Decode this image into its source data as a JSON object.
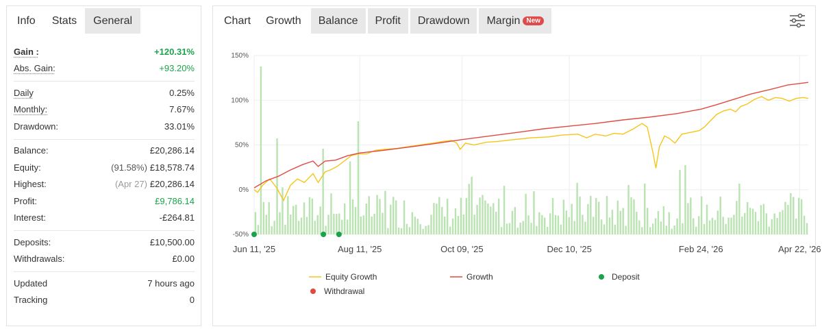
{
  "left_tabs": [
    "Info",
    "Stats",
    "General"
  ],
  "stats": [
    [
      {
        "label": "Gain :",
        "value": "+120.31%",
        "green": true,
        "bold": true,
        "underline": true
      },
      {
        "label": "Abs. Gain:",
        "value": "+93.20%",
        "green": true,
        "underline": true
      }
    ],
    [
      {
        "label": "Daily",
        "value": "0.25%",
        "underline": true
      },
      {
        "label": "Monthly:",
        "value": "7.67%",
        "underline": true
      },
      {
        "label": "Drawdown:",
        "value": "33.01%"
      }
    ],
    [
      {
        "label": "Balance:",
        "value": "£20,286.14"
      },
      {
        "label": "Equity:",
        "prefix": "(91.58%)",
        "prefix_style": "dark",
        "value": "£18,578.74"
      },
      {
        "label": "Highest:",
        "prefix": "(Apr 27)",
        "prefix_style": "muted",
        "value": "£20,286.14"
      },
      {
        "label": "Profit:",
        "value": "£9,786.14",
        "green": true
      },
      {
        "label": "Interest:",
        "value": "-£264.81"
      }
    ],
    [
      {
        "label": "Deposits:",
        "value": "£10,500.00"
      },
      {
        "label": "Withdrawals:",
        "value": "£0.00"
      }
    ],
    [
      {
        "label": "Updated",
        "value": "7 hours ago"
      },
      {
        "label": "Tracking",
        "value": "0"
      }
    ]
  ],
  "chart_tabs": [
    {
      "label": "Chart",
      "style": "plain"
    },
    {
      "label": "Growth",
      "style": "active"
    },
    {
      "label": "Balance"
    },
    {
      "label": "Profit"
    },
    {
      "label": "Drawdown"
    },
    {
      "label": "Margin",
      "badge": "New"
    }
  ],
  "settings_icon": "sliders-icon",
  "colors": {
    "equity": "#f5c518",
    "growth": "#e04a3f",
    "deposit": "#1aa34a",
    "withdrawal": "#e04a3f",
    "bars": "#b9e3b0"
  },
  "chart_data": {
    "type": "line",
    "ylim": [
      -50,
      150
    ],
    "yticks": [
      "150%",
      "100%",
      "50%",
      "0%",
      "-50%"
    ],
    "ytick_values": [
      150,
      100,
      50,
      0,
      -50
    ],
    "x_range": [
      "2025-06-11",
      "2026-04-27"
    ],
    "xticks": [
      {
        "label": "Jun 11, '25",
        "date": "2025-06-11"
      },
      {
        "label": "Aug 11, '25",
        "date": "2025-08-11"
      },
      {
        "label": "Oct 09, '25",
        "date": "2025-10-09"
      },
      {
        "label": "Dec 10, '25",
        "date": "2025-12-10"
      },
      {
        "label": "Feb 24, '26",
        "date": "2026-02-24"
      },
      {
        "label": "Apr 22, '26",
        "date": "2026-04-22"
      }
    ],
    "series": [
      {
        "name": "Equity Growth",
        "points": [
          [
            "2025-06-11",
            0
          ],
          [
            "2025-06-13",
            -3
          ],
          [
            "2025-06-16",
            5
          ],
          [
            "2025-06-20",
            12
          ],
          [
            "2025-06-24",
            2
          ],
          [
            "2025-06-28",
            -12
          ],
          [
            "2025-07-02",
            5
          ],
          [
            "2025-07-06",
            12
          ],
          [
            "2025-07-10",
            8
          ],
          [
            "2025-07-15",
            18
          ],
          [
            "2025-07-18",
            8
          ],
          [
            "2025-07-22",
            20
          ],
          [
            "2025-07-25",
            22
          ],
          [
            "2025-07-29",
            26
          ],
          [
            "2025-08-02",
            32
          ],
          [
            "2025-08-06",
            38
          ],
          [
            "2025-08-10",
            40
          ],
          [
            "2025-08-15",
            40
          ],
          [
            "2025-08-20",
            44
          ],
          [
            "2025-08-25",
            45
          ],
          [
            "2025-09-01",
            46
          ],
          [
            "2025-09-08",
            48
          ],
          [
            "2025-09-15",
            50
          ],
          [
            "2025-09-22",
            52
          ],
          [
            "2025-09-28",
            54
          ],
          [
            "2025-10-03",
            55
          ],
          [
            "2025-10-06",
            52
          ],
          [
            "2025-10-08",
            45
          ],
          [
            "2025-10-11",
            52
          ],
          [
            "2025-10-16",
            50
          ],
          [
            "2025-10-23",
            53
          ],
          [
            "2025-10-30",
            54
          ],
          [
            "2025-11-08",
            56
          ],
          [
            "2025-11-18",
            58
          ],
          [
            "2025-11-28",
            59
          ],
          [
            "2025-12-06",
            61
          ],
          [
            "2025-12-15",
            62
          ],
          [
            "2025-12-20",
            58
          ],
          [
            "2025-12-25",
            62
          ],
          [
            "2025-12-31",
            60
          ],
          [
            "2026-01-05",
            63
          ],
          [
            "2026-01-10",
            62
          ],
          [
            "2026-01-16",
            68
          ],
          [
            "2026-01-21",
            74
          ],
          [
            "2026-01-24",
            70
          ],
          [
            "2026-01-27",
            44
          ],
          [
            "2026-01-29",
            24
          ],
          [
            "2026-01-31",
            48
          ],
          [
            "2026-02-03",
            60
          ],
          [
            "2026-02-06",
            57
          ],
          [
            "2026-02-09",
            52
          ],
          [
            "2026-02-13",
            62
          ],
          [
            "2026-02-18",
            64
          ],
          [
            "2026-02-23",
            66
          ],
          [
            "2026-02-26",
            70
          ],
          [
            "2026-03-02",
            78
          ],
          [
            "2026-03-05",
            84
          ],
          [
            "2026-03-09",
            88
          ],
          [
            "2026-03-13",
            90
          ],
          [
            "2026-03-16",
            87
          ],
          [
            "2026-03-19",
            93
          ],
          [
            "2026-03-23",
            96
          ],
          [
            "2026-03-27",
            101
          ],
          [
            "2026-03-31",
            104
          ],
          [
            "2026-04-04",
            100
          ],
          [
            "2026-04-08",
            103
          ],
          [
            "2026-04-12",
            102
          ],
          [
            "2026-04-16",
            99
          ],
          [
            "2026-04-20",
            102
          ],
          [
            "2026-04-24",
            103
          ],
          [
            "2026-04-27",
            102
          ]
        ]
      },
      {
        "name": "Growth",
        "points": [
          [
            "2025-06-11",
            2
          ],
          [
            "2025-06-18",
            10
          ],
          [
            "2025-06-25",
            15
          ],
          [
            "2025-07-02",
            22
          ],
          [
            "2025-07-09",
            28
          ],
          [
            "2025-07-15",
            32
          ],
          [
            "2025-07-18",
            26
          ],
          [
            "2025-07-22",
            32
          ],
          [
            "2025-07-28",
            33
          ],
          [
            "2025-08-04",
            38
          ],
          [
            "2025-08-11",
            41
          ],
          [
            "2025-08-25",
            44
          ],
          [
            "2025-09-10",
            48
          ],
          [
            "2025-09-25",
            52
          ],
          [
            "2025-10-09",
            56
          ],
          [
            "2025-10-25",
            60
          ],
          [
            "2025-11-10",
            64
          ],
          [
            "2025-11-25",
            68
          ],
          [
            "2025-12-10",
            71
          ],
          [
            "2025-12-25",
            74
          ],
          [
            "2026-01-10",
            78
          ],
          [
            "2026-01-25",
            81
          ],
          [
            "2026-02-10",
            85
          ],
          [
            "2026-02-24",
            90
          ],
          [
            "2026-03-05",
            95
          ],
          [
            "2026-03-15",
            101
          ],
          [
            "2026-03-25",
            107
          ],
          [
            "2026-04-05",
            112
          ],
          [
            "2026-04-15",
            117
          ],
          [
            "2026-04-27",
            120
          ]
        ]
      }
    ],
    "deposits": [
      "2025-06-11",
      "2025-07-21",
      "2025-07-30"
    ],
    "withdrawals": [],
    "legend": [
      "Equity Growth",
      "Growth",
      "Deposit",
      "Withdrawal"
    ],
    "legend_placement": "bottom"
  }
}
